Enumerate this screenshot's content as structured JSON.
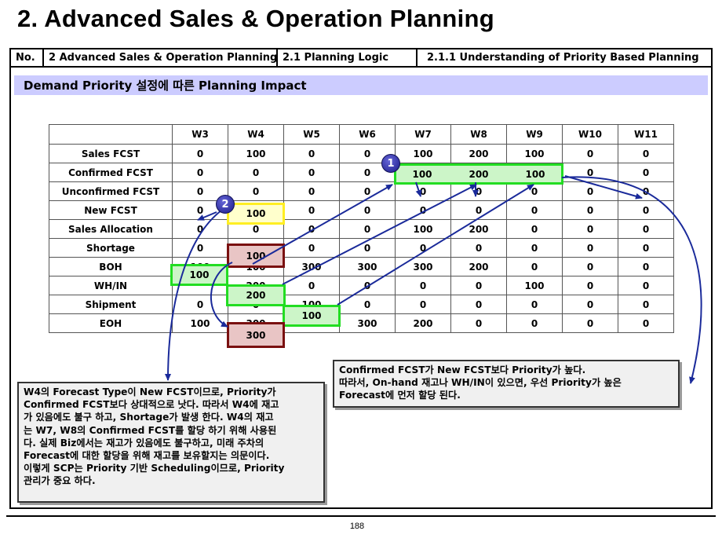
{
  "title": "2. Advanced Sales & Operation Planning",
  "header": {
    "no_label": "No.",
    "section": "2 Advanced Sales & Operation Planning",
    "subsection": "2.1 Planning Logic",
    "topic": "2.1.1 Understanding of Priority Based Planning"
  },
  "banner": "Demand Priority 설정에 따른 Planning Impact",
  "table": {
    "columns": [
      "W3",
      "W4",
      "W5",
      "W6",
      "W7",
      "W8",
      "W9",
      "W10",
      "W11"
    ],
    "rows": [
      {
        "label": "Sales FCST",
        "values": [
          "0",
          "100",
          "0",
          "0",
          "100",
          "200",
          "100",
          "0",
          "0"
        ]
      },
      {
        "label": "Confirmed  FCST",
        "values": [
          "0",
          "0",
          "0",
          "0",
          "100",
          "200",
          "100",
          "0",
          "0"
        ]
      },
      {
        "label": "Unconfirmed  FCST",
        "values": [
          "0",
          "0",
          "0",
          "0",
          "0",
          "0",
          "0",
          "0",
          "0"
        ]
      },
      {
        "label": "New  FCST",
        "values": [
          "0",
          "100",
          "0",
          "0",
          "0",
          "0",
          "0",
          "0",
          "0"
        ]
      },
      {
        "label": "Sales Allocation",
        "values": [
          "0",
          "0",
          "0",
          "0",
          "100",
          "200",
          "0",
          "0",
          "0"
        ]
      },
      {
        "label": "Shortage",
        "values": [
          "0",
          "100",
          "0",
          "0",
          "0",
          "0",
          "0",
          "0",
          "0"
        ]
      },
      {
        "label": "BOH",
        "values": [
          "100",
          "100",
          "300",
          "300",
          "300",
          "200",
          "0",
          "0",
          "0"
        ]
      },
      {
        "label": "WH/IN",
        "values": [
          "",
          "200",
          "0",
          "0",
          "0",
          "0",
          "100",
          "0",
          "0"
        ]
      },
      {
        "label": "Shipment",
        "values": [
          "0",
          "0",
          "100",
          "0",
          "0",
          "0",
          "0",
          "0",
          "0"
        ]
      },
      {
        "label": "EOH",
        "values": [
          "100",
          "300",
          "300",
          "300",
          "200",
          "0",
          "0",
          "0",
          "0"
        ]
      }
    ]
  },
  "badges": {
    "one": "1",
    "two": "2"
  },
  "note_left": [
    "W4의 Forecast Type이 New FCST이므로, Priority가",
    "Confirmed FCST보다 상대적으로 낫다. 따라서 W4에 재고",
    "가 있음에도 불구 하고, Shortage가 발생 한다. W4의 재고",
    "는 W7, W8의 Confirmed FCST를 할당 하기 위해 사용된",
    "다. 실제 Biz에서는 재고가 있음에도 불구하고, 미래 주차의",
    "Forecast에 대한 할당을 위해 재고를 보유할지는 의문이다.",
    "이렇게 SCP는 Priority 기반 Scheduling이므로, Priority",
    "관리가 중요 하다."
  ],
  "note_right": [
    "Confirmed FCST가 New FCST보다 Priority가 높다.",
    "따라서, On-hand 재고나 WH/IN이 있으면, 우선 Priority가 높은",
    "Forecast에 먼저 할당 된다."
  ],
  "page_number": "188",
  "colors": {
    "banner_bg": "#ccccff",
    "highlight_green": "#22dd22",
    "highlight_yellow": "#ffee22",
    "highlight_red": "#7a1010",
    "arrow_blue": "#1a2a9a"
  }
}
